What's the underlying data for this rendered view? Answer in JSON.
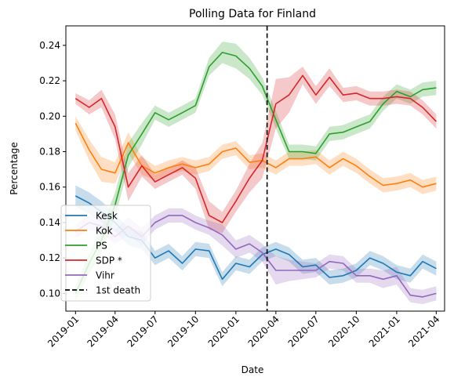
{
  "chart_data": {
    "type": "line",
    "title": "Polling Data for Finland",
    "xlabel": "Date",
    "ylabel": "Percentage",
    "x_range": [
      "2018-12-10",
      "2021-04-20"
    ],
    "ylim": [
      0.09,
      0.251
    ],
    "x_ticks": [
      "2019-01",
      "2019-04",
      "2019-07",
      "2019-10",
      "2020-01",
      "2020-04",
      "2020-07",
      "2020-10",
      "2021-01",
      "2021-04"
    ],
    "x_tick_dates": [
      "2019-01-01",
      "2019-04-01",
      "2019-07-01",
      "2019-10-01",
      "2020-01-01",
      "2020-04-01",
      "2020-07-01",
      "2020-10-01",
      "2021-01-01",
      "2021-04-01"
    ],
    "y_ticks": [
      0.1,
      0.12,
      0.14,
      0.16,
      0.18,
      0.2,
      0.22,
      0.24
    ],
    "y_tick_labels": [
      "0.10",
      "0.12",
      "0.14",
      "0.16",
      "0.18",
      "0.20",
      "0.22",
      "0.24"
    ],
    "grid": false,
    "legend_position": "lower-left",
    "vline": {
      "x": "2020-03-12",
      "label": "1st death",
      "color": "#000000",
      "style": "dashed"
    },
    "series": [
      {
        "name": "Kesk",
        "color": "#1f77b4",
        "x": [
          "2019-01-01",
          "2019-02-01",
          "2019-03-01",
          "2019-04-01",
          "2019-05-01",
          "2019-06-01",
          "2019-07-01",
          "2019-08-01",
          "2019-09-01",
          "2019-10-01",
          "2019-11-01",
          "2019-12-01",
          "2020-01-01",
          "2020-02-01",
          "2020-03-01",
          "2020-04-01",
          "2020-05-01",
          "2020-06-01",
          "2020-07-01",
          "2020-08-01",
          "2020-09-01",
          "2020-10-01",
          "2020-11-01",
          "2020-12-01",
          "2021-01-01",
          "2021-02-01",
          "2021-03-01",
          "2021-04-01"
        ],
        "values": [
          0.155,
          0.151,
          0.146,
          0.14,
          0.132,
          0.13,
          0.12,
          0.124,
          0.117,
          0.125,
          0.124,
          0.108,
          0.117,
          0.115,
          0.122,
          0.125,
          0.122,
          0.115,
          0.116,
          0.109,
          0.11,
          0.113,
          0.12,
          0.117,
          0.112,
          0.11,
          0.118,
          0.114
        ],
        "band": [
          0.006,
          0.006,
          0.006,
          0.005,
          0.005,
          0.005,
          0.004,
          0.004,
          0.004,
          0.004,
          0.004,
          0.004,
          0.004,
          0.004,
          0.004,
          0.004,
          0.004,
          0.004,
          0.004,
          0.004,
          0.004,
          0.004,
          0.004,
          0.004,
          0.004,
          0.004,
          0.004,
          0.004
        ]
      },
      {
        "name": "Kok",
        "color": "#ff7f0e",
        "x": [
          "2019-01-01",
          "2019-02-01",
          "2019-03-01",
          "2019-04-01",
          "2019-05-01",
          "2019-06-01",
          "2019-07-01",
          "2019-08-01",
          "2019-09-01",
          "2019-10-01",
          "2019-11-01",
          "2019-12-01",
          "2020-01-01",
          "2020-02-01",
          "2020-03-01",
          "2020-04-01",
          "2020-05-01",
          "2020-06-01",
          "2020-07-01",
          "2020-08-01",
          "2020-09-01",
          "2020-10-01",
          "2020-11-01",
          "2020-12-01",
          "2021-01-01",
          "2021-02-01",
          "2021-03-01",
          "2021-04-01"
        ],
        "values": [
          0.196,
          0.181,
          0.17,
          0.168,
          0.185,
          0.172,
          0.168,
          0.171,
          0.173,
          0.171,
          0.173,
          0.18,
          0.182,
          0.174,
          0.175,
          0.171,
          0.176,
          0.176,
          0.177,
          0.171,
          0.176,
          0.172,
          0.166,
          0.161,
          0.162,
          0.164,
          0.16,
          0.162
        ],
        "band": [
          0.004,
          0.006,
          0.007,
          0.006,
          0.006,
          0.005,
          0.004,
          0.004,
          0.004,
          0.004,
          0.004,
          0.004,
          0.004,
          0.004,
          0.004,
          0.004,
          0.004,
          0.004,
          0.004,
          0.004,
          0.004,
          0.004,
          0.004,
          0.004,
          0.004,
          0.004,
          0.004,
          0.004
        ]
      },
      {
        "name": "PS",
        "color": "#2ca02c",
        "x": [
          "2019-01-01",
          "2019-02-01",
          "2019-03-01",
          "2019-04-01",
          "2019-05-01",
          "2019-06-01",
          "2019-07-01",
          "2019-08-01",
          "2019-09-01",
          "2019-10-01",
          "2019-11-01",
          "2019-12-01",
          "2020-01-01",
          "2020-02-01",
          "2020-03-01",
          "2020-04-01",
          "2020-05-01",
          "2020-06-01",
          "2020-07-01",
          "2020-08-01",
          "2020-09-01",
          "2020-10-01",
          "2020-11-01",
          "2020-12-01",
          "2021-01-01",
          "2021-02-01",
          "2021-03-01",
          "2021-04-01"
        ],
        "values": [
          0.1,
          0.117,
          0.13,
          0.15,
          0.178,
          0.19,
          0.202,
          0.198,
          0.202,
          0.206,
          0.228,
          0.236,
          0.234,
          0.227,
          0.217,
          0.198,
          0.18,
          0.18,
          0.179,
          0.19,
          0.191,
          0.194,
          0.197,
          0.207,
          0.214,
          0.211,
          0.215,
          0.216
        ],
        "band": [
          0.004,
          0.006,
          0.007,
          0.007,
          0.007,
          0.006,
          0.004,
          0.004,
          0.004,
          0.004,
          0.005,
          0.006,
          0.007,
          0.006,
          0.005,
          0.005,
          0.004,
          0.004,
          0.004,
          0.004,
          0.004,
          0.004,
          0.004,
          0.004,
          0.004,
          0.004,
          0.004,
          0.004
        ]
      },
      {
        "name": "SDP *",
        "color": "#d62728",
        "x": [
          "2019-01-01",
          "2019-02-01",
          "2019-03-01",
          "2019-04-01",
          "2019-05-01",
          "2019-06-01",
          "2019-07-01",
          "2019-08-01",
          "2019-09-01",
          "2019-10-01",
          "2019-11-01",
          "2019-12-01",
          "2020-01-01",
          "2020-02-01",
          "2020-03-01",
          "2020-04-01",
          "2020-05-01",
          "2020-06-01",
          "2020-07-01",
          "2020-08-01",
          "2020-09-01",
          "2020-10-01",
          "2020-11-01",
          "2020-12-01",
          "2021-01-01",
          "2021-02-01",
          "2021-03-01",
          "2021-04-01"
        ],
        "values": [
          0.21,
          0.205,
          0.21,
          0.194,
          0.16,
          0.172,
          0.163,
          0.167,
          0.171,
          0.165,
          0.144,
          0.14,
          0.152,
          0.165,
          0.175,
          0.207,
          0.212,
          0.223,
          0.212,
          0.222,
          0.212,
          0.213,
          0.21,
          0.21,
          0.211,
          0.21,
          0.205,
          0.197
        ],
        "band": [
          0.003,
          0.004,
          0.005,
          0.007,
          0.008,
          0.006,
          0.004,
          0.004,
          0.004,
          0.006,
          0.008,
          0.006,
          0.006,
          0.008,
          0.01,
          0.014,
          0.01,
          0.005,
          0.005,
          0.005,
          0.004,
          0.004,
          0.004,
          0.004,
          0.004,
          0.004,
          0.004,
          0.004
        ]
      },
      {
        "name": "Vihr",
        "color": "#9467bd",
        "x": [
          "2019-01-01",
          "2019-02-01",
          "2019-03-01",
          "2019-04-01",
          "2019-05-01",
          "2019-06-01",
          "2019-07-01",
          "2019-08-01",
          "2019-09-01",
          "2019-10-01",
          "2019-11-01",
          "2019-12-01",
          "2020-01-01",
          "2020-02-01",
          "2020-03-01",
          "2020-04-01",
          "2020-05-01",
          "2020-06-01",
          "2020-07-01",
          "2020-08-01",
          "2020-09-01",
          "2020-10-01",
          "2020-11-01",
          "2020-12-01",
          "2021-01-01",
          "2021-02-01",
          "2021-03-01",
          "2021-04-01"
        ],
        "values": [
          0.135,
          0.14,
          0.138,
          0.132,
          0.138,
          0.132,
          0.14,
          0.144,
          0.144,
          0.14,
          0.137,
          0.133,
          0.125,
          0.128,
          0.123,
          0.113,
          0.113,
          0.113,
          0.113,
          0.118,
          0.117,
          0.11,
          0.11,
          0.108,
          0.11,
          0.099,
          0.098,
          0.1
        ],
        "band": [
          0.004,
          0.004,
          0.004,
          0.004,
          0.005,
          0.005,
          0.004,
          0.004,
          0.004,
          0.004,
          0.004,
          0.006,
          0.005,
          0.005,
          0.005,
          0.008,
          0.006,
          0.005,
          0.004,
          0.004,
          0.004,
          0.004,
          0.004,
          0.005,
          0.005,
          0.004,
          0.004,
          0.004
        ]
      }
    ]
  }
}
